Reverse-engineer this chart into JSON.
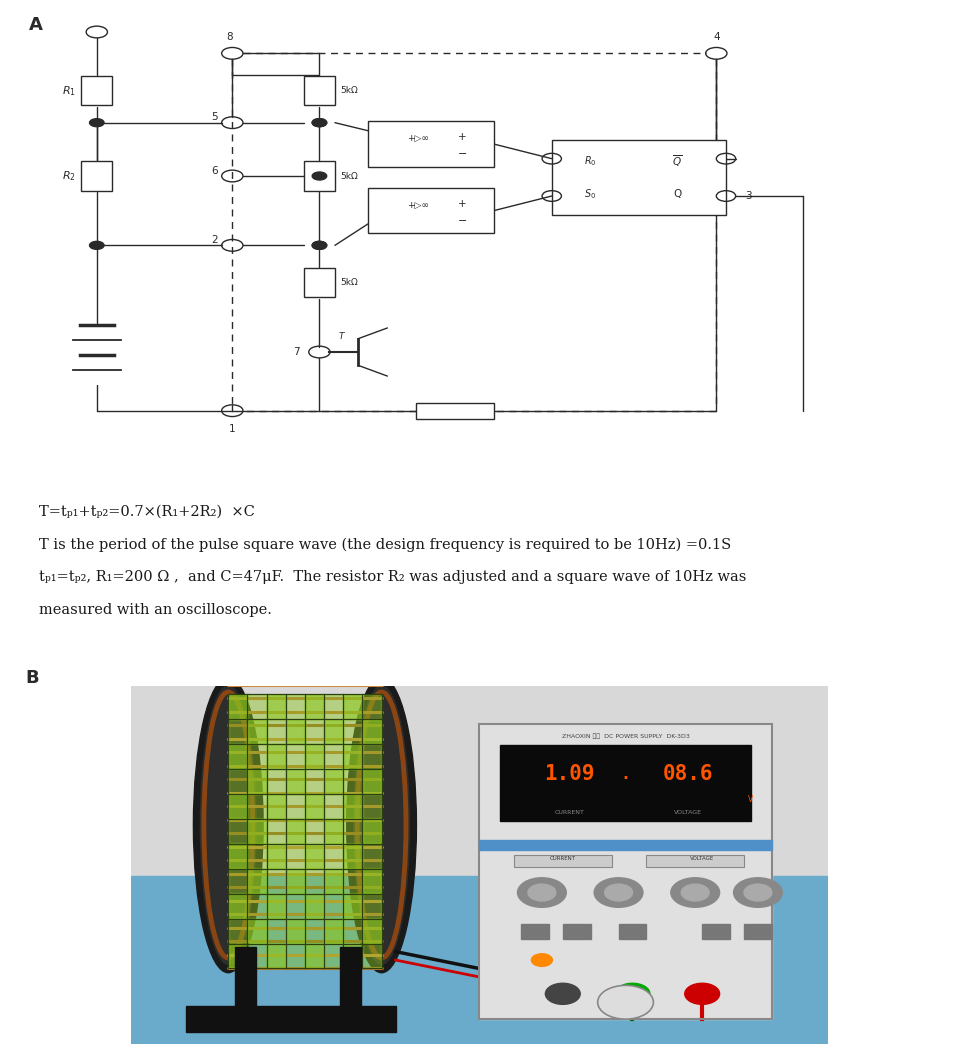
{
  "label_A": "A",
  "label_B": "B",
  "bg_color": "#ffffff",
  "text_color": "#1a1a1a",
  "circuit_color": "#2a2a2a",
  "line1": "T=tₚ₁+tₚ₂=0.7×(R₁+2R₂)  ×C",
  "line2": "T is the period of the pulse square wave (the design frequency is required to be 10Hz) =0.1S",
  "line3a": "tₚ₁=tₚ₂,",
  "line3b": " R₁=200 Ω ,  and C=47μF.  The resistor R₂ was adjusted and a square wave of 10Hz was",
  "line4": "measured with an oscilloscope.",
  "font_size_text": 10.5,
  "font_size_label": 13,
  "circuit_lw": 1.0
}
